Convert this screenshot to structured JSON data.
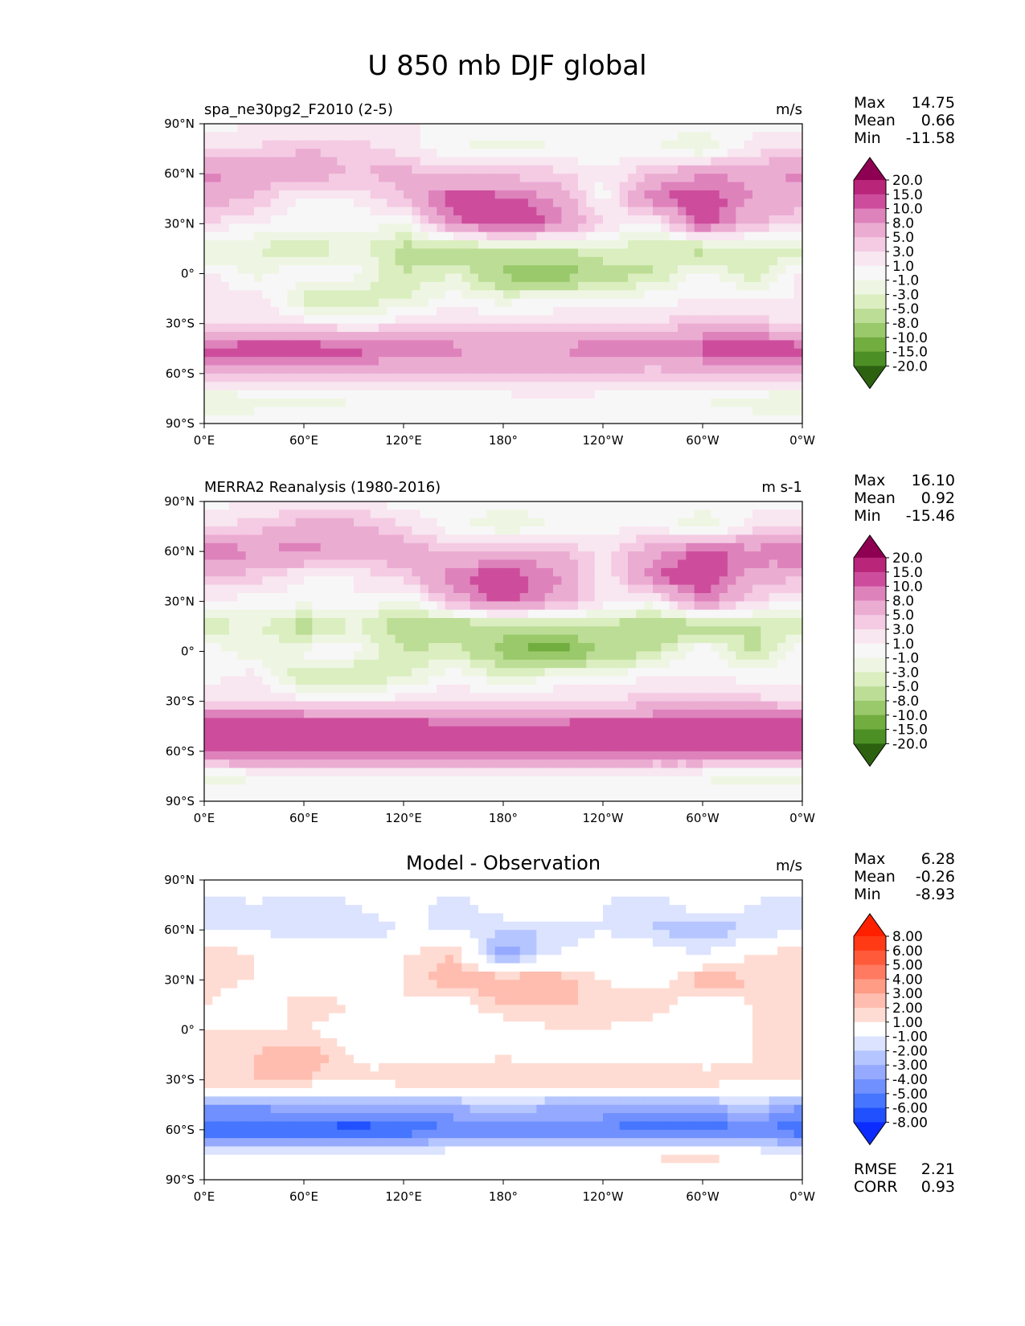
{
  "title": "U 850 mb DJF global",
  "palettes": {
    "seq": [
      "#2c6110",
      "#4c8f24",
      "#72ad3f",
      "#99c96a",
      "#bcdd95",
      "#dbeec0",
      "#eef6e3",
      "#f7f7f7",
      "#f8e6f0",
      "#f4cbe3",
      "#ebacd2",
      "#de82bc",
      "#cd4d9c",
      "#b82579",
      "#8e0152"
    ],
    "diff": [
      "#0c2cff",
      "#2150ff",
      "#4675ff",
      "#7090ff",
      "#95aaff",
      "#b5c5ff",
      "#dbe3ff",
      "#ffffff",
      "#ffdcd3",
      "#ffbdb0",
      "#ff9c86",
      "#ff7a60",
      "#ff5a3a",
      "#ff3a14",
      "#ff2000"
    ]
  },
  "chart_data": [
    {
      "type": "heatmap",
      "panel": "test",
      "title": "",
      "left_title": "spa_ne30pg2_F2010 (2-5)",
      "units": "m/s",
      "stats": [
        {
          "label": "Max",
          "value": "14.75"
        },
        {
          "label": "Mean",
          "value": "0.66"
        },
        {
          "label": "Min",
          "value": "-11.58"
        }
      ],
      "colorbar_levels": [
        "20.0",
        "15.0",
        "10.0",
        "8.0",
        "5.0",
        "3.0",
        "1.0",
        "-1.0",
        "-3.0",
        "-5.0",
        "-8.0",
        "-10.0",
        "-15.0",
        "-20.0"
      ],
      "palette": "seq",
      "field": {
        "lat": [
          90,
          75,
          60,
          45,
          30,
          15,
          0,
          -15,
          -30,
          -45,
          -60,
          -75,
          -90
        ],
        "lon": [
          0,
          30,
          60,
          90,
          120,
          150,
          180,
          210,
          240,
          270,
          300,
          330,
          360
        ],
        "u": [
          [
            0,
            1,
            1,
            1,
            1,
            1,
            0,
            0,
            0,
            0,
            0,
            0,
            0
          ],
          [
            3,
            3,
            5,
            4,
            2,
            -1,
            -2,
            -1,
            0,
            -1,
            -3,
            2,
            3
          ],
          [
            9,
            7,
            7,
            5,
            6,
            4,
            4,
            4,
            1,
            5,
            8,
            7,
            9
          ],
          [
            6,
            5,
            0,
            1,
            5,
            12,
            11,
            8,
            0,
            10,
            12,
            8,
            6
          ],
          [
            3,
            1,
            0,
            0,
            -1,
            9,
            13,
            10,
            3,
            0,
            12,
            5,
            3
          ],
          [
            -4,
            -3,
            -5,
            -2,
            -6,
            -7,
            -5,
            -5,
            -3,
            -5,
            -6,
            -4,
            -4
          ],
          [
            2,
            -2,
            1,
            0,
            -5,
            -3,
            -9,
            -11,
            -7,
            -5,
            0,
            -5,
            2
          ],
          [
            1,
            3,
            -4,
            -5,
            -3,
            0,
            -2,
            -1,
            -1,
            0,
            1,
            1,
            1
          ],
          [
            2,
            2,
            2,
            1,
            2,
            3,
            3,
            3,
            3,
            3,
            5,
            4,
            2
          ],
          [
            11,
            12,
            12,
            11,
            10,
            9,
            7,
            8,
            10,
            9,
            11,
            13,
            11
          ],
          [
            5,
            6,
            6,
            6,
            5,
            5,
            5,
            5,
            5,
            4,
            5,
            6,
            5
          ],
          [
            -3,
            -2,
            -2,
            -1,
            -1,
            0,
            0,
            1,
            0,
            -1,
            -1,
            -2,
            -3
          ],
          [
            0,
            0,
            0,
            0,
            0,
            0,
            0,
            0,
            0,
            0,
            0,
            0,
            0
          ]
        ]
      }
    },
    {
      "type": "heatmap",
      "panel": "reference",
      "title": "",
      "left_title": "MERRA2 Reanalysis (1980-2016)",
      "units": "m s-1",
      "stats": [
        {
          "label": "Max",
          "value": "16.10"
        },
        {
          "label": "Mean",
          "value": "0.92"
        },
        {
          "label": "Min",
          "value": "-15.46"
        }
      ],
      "colorbar_levels": [
        "20.0",
        "15.0",
        "10.0",
        "8.0",
        "5.0",
        "3.0",
        "1.0",
        "-1.0",
        "-3.0",
        "-5.0",
        "-8.0",
        "-10.0",
        "-15.0",
        "-20.0"
      ],
      "palette": "seq",
      "field": {
        "lat": [
          90,
          75,
          60,
          45,
          30,
          15,
          0,
          -15,
          -30,
          -45,
          -60,
          -75,
          -90
        ],
        "lon": [
          0,
          30,
          60,
          90,
          120,
          150,
          180,
          210,
          240,
          270,
          300,
          330,
          360
        ],
        "u": [
          [
            0,
            1,
            1,
            1,
            0,
            0,
            0,
            0,
            0,
            0,
            0,
            0,
            0
          ],
          [
            2,
            4,
            6,
            6,
            3,
            0,
            -3,
            -1,
            0,
            1,
            -3,
            2,
            2
          ],
          [
            11,
            8,
            9,
            7,
            7,
            4,
            6,
            6,
            2,
            7,
            11,
            9,
            11
          ],
          [
            5,
            4,
            1,
            1,
            4,
            10,
            12,
            9,
            1,
            10,
            13,
            7,
            5
          ],
          [
            1,
            0,
            0,
            1,
            -2,
            6,
            11,
            7,
            2,
            0,
            9,
            3,
            1
          ],
          [
            -5,
            -2,
            -7,
            -3,
            -7,
            -8,
            -7,
            -7,
            -5,
            -8,
            -7,
            -5,
            -5
          ],
          [
            1,
            -3,
            0,
            0,
            -5,
            -4,
            -9,
            -12,
            -8,
            -5,
            1,
            -6,
            1
          ],
          [
            0,
            2,
            -6,
            -6,
            -3,
            0,
            -3,
            -1,
            -1,
            1,
            1,
            0,
            0
          ],
          [
            2,
            2,
            2,
            1,
            2,
            3,
            3,
            3,
            3,
            4,
            5,
            4,
            2
          ],
          [
            15,
            15,
            14,
            13,
            12,
            11,
            10,
            11,
            12,
            12,
            13,
            14,
            15
          ],
          [
            11,
            12,
            12,
            12,
            11,
            10,
            10,
            10,
            10,
            10,
            11,
            11,
            11
          ],
          [
            -2,
            -1,
            -1,
            0,
            0,
            0,
            0,
            0,
            0,
            0,
            -1,
            -2,
            -2
          ],
          [
            0,
            0,
            0,
            0,
            0,
            0,
            0,
            0,
            0,
            0,
            0,
            0,
            0
          ]
        ]
      }
    },
    {
      "type": "heatmap",
      "panel": "difference",
      "title": "Model - Observation",
      "left_title": "",
      "units": "m/s",
      "stats": [
        {
          "label": "Max",
          "value": "6.28"
        },
        {
          "label": "Mean",
          "value": "-0.26"
        },
        {
          "label": "Min",
          "value": "-8.93"
        }
      ],
      "extra_stats": [
        {
          "label": "RMSE",
          "value": "2.21"
        },
        {
          "label": "CORR",
          "value": "0.93"
        }
      ],
      "colorbar_levels": [
        "8.00",
        "6.00",
        "5.00",
        "4.00",
        "3.00",
        "2.00",
        "1.00",
        "-1.00",
        "-2.00",
        "-3.00",
        "-4.00",
        "-5.00",
        "-6.00",
        "-8.00"
      ],
      "palette": "diff",
      "field": {
        "lat": [
          90,
          75,
          60,
          45,
          30,
          15,
          0,
          -15,
          -30,
          -45,
          -60,
          -75,
          -90
        ],
        "lon": [
          0,
          30,
          60,
          90,
          120,
          150,
          180,
          210,
          240,
          270,
          300,
          330,
          360
        ],
        "u": [
          [
            0,
            0,
            0,
            0,
            0,
            0,
            0,
            0,
            0,
            0,
            0,
            0,
            0
          ],
          [
            -2,
            -1,
            -2,
            -1,
            0,
            -2,
            0,
            0,
            -1,
            -2,
            0,
            -1,
            -2
          ],
          [
            -1,
            -1,
            -2,
            -2,
            -1,
            -1,
            -2,
            -2,
            -1,
            -2,
            -3,
            -2,
            -1
          ],
          [
            2,
            1,
            1,
            0,
            1,
            2,
            -4,
            -1,
            0,
            0,
            -1,
            1,
            2
          ],
          [
            2,
            1,
            0,
            -1,
            1,
            3,
            3,
            3,
            1,
            0,
            3,
            2,
            2
          ],
          [
            1,
            -1,
            2,
            1,
            1,
            0,
            2,
            2,
            2,
            2,
            0,
            1,
            1
          ],
          [
            1,
            1,
            1,
            0,
            0,
            1,
            0,
            1,
            1,
            0,
            -1,
            1,
            1
          ],
          [
            1,
            2,
            3,
            1,
            0,
            0,
            1,
            0,
            0,
            0,
            0,
            1,
            1
          ],
          [
            2,
            2,
            2,
            1,
            2,
            2,
            2,
            2,
            2,
            2,
            2,
            1,
            2
          ],
          [
            -4,
            -4,
            -3,
            -3,
            -3,
            -3,
            -2,
            -3,
            -3,
            -3,
            -3,
            -2,
            -4
          ],
          [
            -6,
            -6,
            -6,
            -7,
            -6,
            -5,
            -5,
            -5,
            -5,
            -6,
            -6,
            -5,
            -6
          ],
          [
            -1,
            -1,
            -1,
            -1,
            -1,
            0,
            0,
            0,
            0,
            1,
            2,
            0,
            -1
          ],
          [
            0,
            0,
            0,
            0,
            0,
            0,
            0,
            0,
            0,
            0,
            0,
            0,
            0
          ]
        ]
      }
    }
  ],
  "axes": {
    "xticks": [
      "0°E",
      "60°E",
      "120°E",
      "180°",
      "120°W",
      "60°W",
      "0°W"
    ],
    "yticks": [
      "90°N",
      "60°N",
      "30°N",
      "0°",
      "30°S",
      "60°S",
      "90°S"
    ]
  }
}
